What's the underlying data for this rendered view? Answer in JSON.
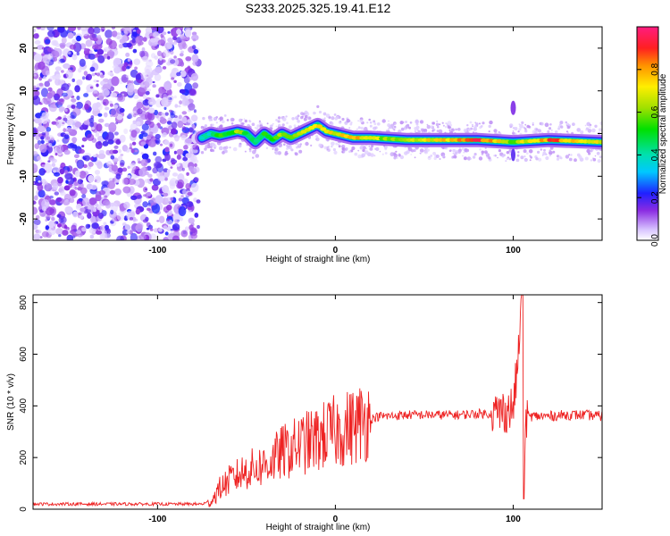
{
  "title": "S233.2025.325.19.41.E12",
  "chart_data": [
    {
      "type": "heatmap",
      "name": "spectrogram",
      "xlabel": "Height of straight line (km)",
      "ylabel": "Frequency (Hz)",
      "xlim": [
        -170,
        150
      ],
      "ylim": [
        -25,
        25
      ],
      "xticks": [
        -100,
        0,
        100
      ],
      "yticks": [
        20,
        10,
        0,
        -10,
        -20
      ],
      "colorbar": {
        "label": "Normalized spectral amplitude",
        "range": [
          0,
          1
        ],
        "ticks": [
          0.0,
          0.2,
          0.4,
          0.6,
          0.8
        ]
      },
      "noise_region_km": [
        -170,
        -75
      ],
      "ridge": {
        "x": [
          -75,
          -70,
          -65,
          -60,
          -55,
          -50,
          -45,
          -40,
          -35,
          -30,
          -25,
          -20,
          -15,
          -10,
          -5,
          0,
          10,
          20,
          40,
          60,
          80,
          100,
          120,
          150
        ],
        "y": [
          -1,
          0,
          -0.5,
          0,
          0.5,
          0,
          -2,
          0,
          -1.5,
          0,
          -1,
          0,
          1,
          2,
          0.5,
          0,
          -1,
          -1,
          -1.5,
          -1.5,
          -1.5,
          -2,
          -1.5,
          -2
        ],
        "amplitude": [
          0.3,
          0.4,
          0.5,
          0.5,
          0.6,
          0.5,
          0.4,
          0.5,
          0.55,
          0.6,
          0.6,
          0.65,
          0.7,
          0.75,
          0.7,
          0.7,
          0.8,
          0.65,
          0.6,
          0.75,
          0.9,
          0.6,
          0.85,
          0.7
        ]
      },
      "spike_km": 100
    },
    {
      "type": "line",
      "name": "snr",
      "xlabel": "Height of straight line (km)",
      "ylabel": "SNR (10 * v/v)",
      "xlim": [
        -170,
        150
      ],
      "ylim": [
        0,
        830
      ],
      "xticks": [
        -100,
        0,
        100
      ],
      "yticks": [
        0,
        200,
        400,
        600,
        800
      ],
      "color": "#ee2222",
      "series": [
        {
          "name": "SNR",
          "x": [
            -170,
            -150,
            -130,
            -110,
            -90,
            -75,
            -70,
            -65,
            -60,
            -55,
            -50,
            -45,
            -40,
            -35,
            -30,
            -25,
            -20,
            -15,
            -10,
            -5,
            0,
            5,
            10,
            15,
            20,
            25,
            30,
            40,
            50,
            60,
            70,
            80,
            90,
            95,
            100,
            103,
            105,
            106,
            107,
            110,
            120,
            130,
            140,
            150
          ],
          "y": [
            20,
            20,
            20,
            20,
            20,
            20,
            30,
            80,
            110,
            130,
            150,
            160,
            170,
            190,
            220,
            230,
            250,
            260,
            270,
            290,
            300,
            310,
            320,
            340,
            350,
            360,
            360,
            365,
            365,
            365,
            365,
            370,
            370,
            380,
            390,
            600,
            830,
            60,
            360,
            360,
            360,
            365,
            365,
            360
          ]
        }
      ]
    }
  ]
}
